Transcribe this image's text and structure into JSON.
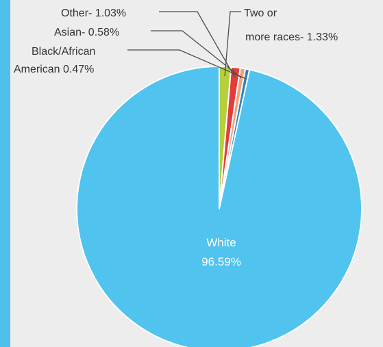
{
  "chart_data": {
    "type": "pie",
    "title": "",
    "slices": [
      {
        "key": "two_or_more",
        "label_lines": [
          "Two or",
          "more races- 1.33%"
        ],
        "value": 1.33,
        "color": "#b6cf3c"
      },
      {
        "key": "other",
        "label_lines": [
          "Other- 1.03%"
        ],
        "value": 1.03,
        "color": "#e23c3c"
      },
      {
        "key": "asian",
        "label_lines": [
          "Asian- 0.58%"
        ],
        "value": 0.58,
        "color": "#f2a37a"
      },
      {
        "key": "black",
        "label_lines": [
          "Black/African",
          "American 0.47%"
        ],
        "value": 0.47,
        "color": "#2f7fc2"
      },
      {
        "key": "white",
        "label_lines": [
          "White",
          "96.59%"
        ],
        "value": 96.59,
        "color": "#50c3ef"
      }
    ]
  },
  "colors": {
    "background": "#ededed",
    "side_bar": "#4fc0ec"
  }
}
